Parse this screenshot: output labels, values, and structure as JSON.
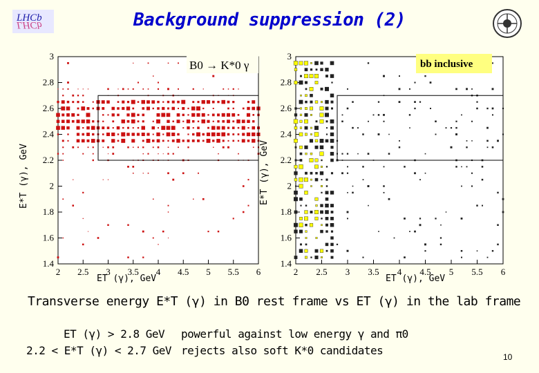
{
  "slide_title": "Background suppression (2)",
  "page_number": "10",
  "caption": "Transverse energy E*T (γ) in B0 rest frame vs ET (γ) in the lab frame",
  "cuts": {
    "line1": "ET (γ) > 2.8 GeV",
    "line2": "2.2 < E*T (γ) < 2.7 GeV",
    "note1": "powerful against low energy γ and π0",
    "note2": "rejects also soft K*0 candidates"
  },
  "colors": {
    "title": "#0000cc",
    "signal_marker": "#cc0000",
    "background_marker": "#222222",
    "highlight": "#ffff00",
    "background": "#ffffee"
  },
  "chart_data": [
    {
      "type": "scatter",
      "title": "B0 → K*0 γ",
      "xlabel": "ET (γ), GeV",
      "ylabel": "E*T (γ), GeV",
      "xlim": [
        2,
        6
      ],
      "ylim": [
        1.4,
        3
      ],
      "x_ticks": [
        "2",
        "2.5",
        "3",
        "3.5",
        "4",
        "4.5",
        "5",
        "5.5",
        "6"
      ],
      "y_ticks": [
        "1.4",
        "1.6",
        "1.8",
        "2",
        "2.2",
        "2.4",
        "2.6",
        "2.8",
        "3"
      ],
      "cut_box": {
        "x_min": 2.8,
        "x_max": 6,
        "y_min": 2.2,
        "y_max": 2.7
      },
      "marker": "box",
      "density_description": "concentrated band 2.3-2.6 in E*T across full ET range"
    },
    {
      "type": "scatter",
      "title": "bb inclusive",
      "xlabel": "ET (γ), GeV",
      "ylabel": "E*T (γ), GeV",
      "xlim": [
        2,
        6
      ],
      "ylim": [
        1.4,
        3
      ],
      "x_ticks": [
        "2",
        "2.5",
        "3",
        "3.5",
        "4",
        "4.5",
        "5",
        "5.5",
        "6"
      ],
      "y_ticks": [
        "1.4",
        "1.6",
        "1.8",
        "2",
        "2.2",
        "2.4",
        "2.6",
        "2.8",
        "3"
      ],
      "cut_box": {
        "x_min": 2.8,
        "x_max": 6,
        "y_min": 2.2,
        "y_max": 2.7
      },
      "marker": "box",
      "density_description": "dense at low ET (2-2.8 GeV), sparse elsewhere"
    }
  ]
}
